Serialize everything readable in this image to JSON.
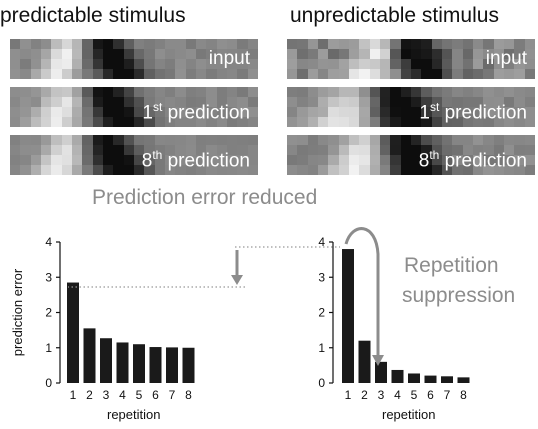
{
  "columns": [
    {
      "title": "predictable stimulus",
      "strips": [
        {
          "label": "input"
        },
        {
          "ord": "1",
          "sup": "st",
          "label": "prediction"
        },
        {
          "ord": "8",
          "sup": "th",
          "label": "prediction"
        }
      ]
    },
    {
      "title": "unpredictable stimulus",
      "strips": [
        {
          "label": "input"
        },
        {
          "ord": "1",
          "sup": "st",
          "label": "prediction"
        },
        {
          "ord": "8",
          "sup": "th",
          "label": "prediction"
        }
      ]
    }
  ],
  "annotations": {
    "error_reduced": "Prediction error reduced",
    "repetition_line1": "Repetition",
    "repetition_line2": "suppression"
  },
  "chart_data": [
    {
      "type": "bar",
      "categories": [
        "1",
        "2",
        "3",
        "4",
        "5",
        "6",
        "7",
        "8"
      ],
      "values": [
        2.85,
        1.55,
        1.27,
        1.15,
        1.1,
        1.02,
        1.01,
        1.0
      ],
      "xlabel": "repetition",
      "ylabel": "prediction error",
      "ylim": [
        0,
        4
      ],
      "yticks": [
        "0",
        "1",
        "2",
        "3",
        "4"
      ]
    },
    {
      "type": "bar",
      "categories": [
        "1",
        "2",
        "3",
        "4",
        "5",
        "6",
        "7",
        "8"
      ],
      "values": [
        3.8,
        1.2,
        0.6,
        0.37,
        0.27,
        0.21,
        0.19,
        0.16
      ],
      "xlabel": "repetition",
      "ylabel": "",
      "ylim": [
        0,
        4
      ],
      "yticks": [
        "0",
        "1",
        "2",
        "3",
        "4"
      ]
    }
  ],
  "colors": {
    "bar": "#1a1a1a",
    "annotation_gray": "#8c8c8c",
    "dotted_line": "#999999"
  }
}
